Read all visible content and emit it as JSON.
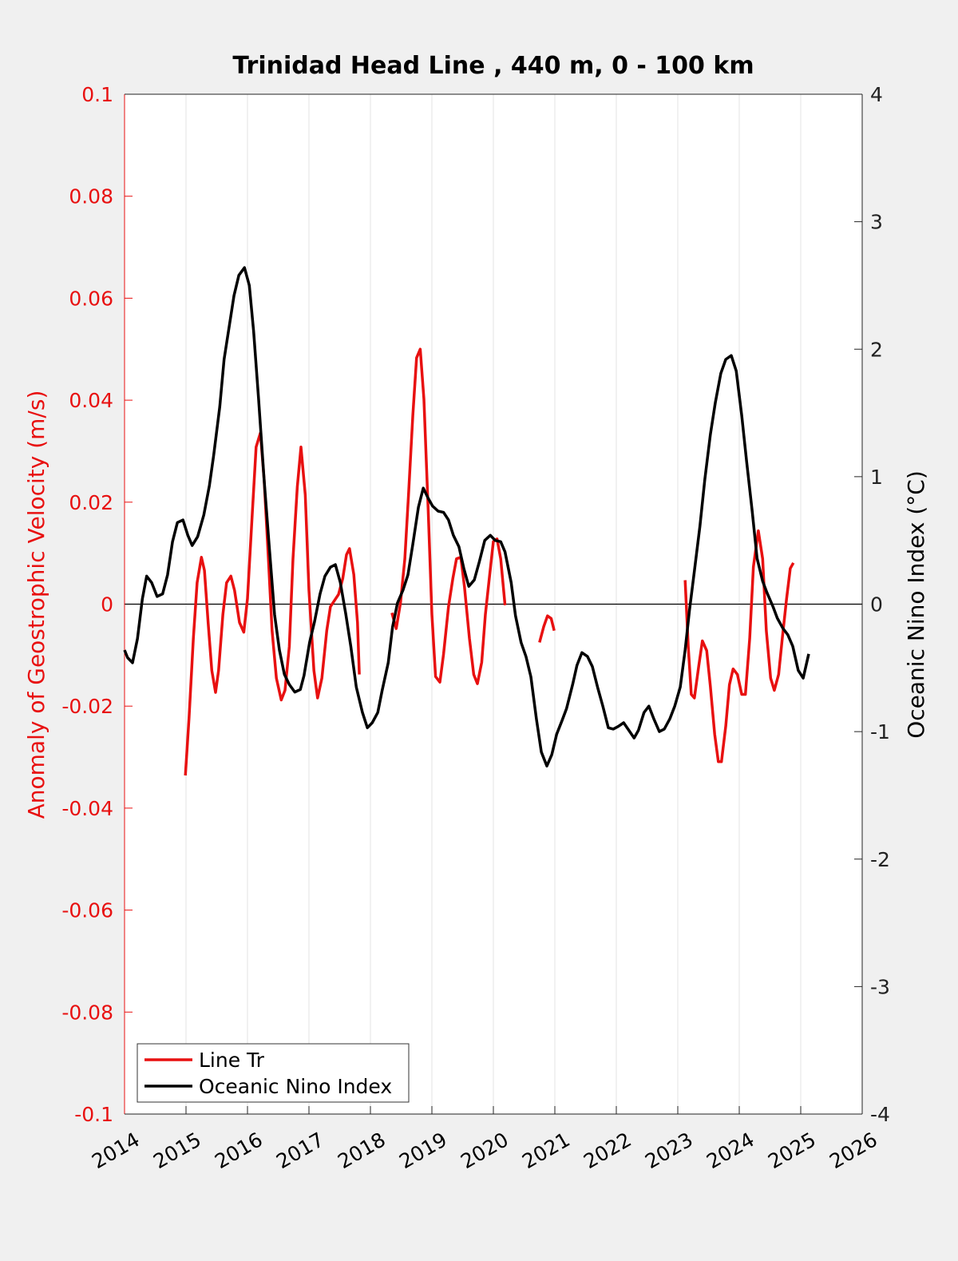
{
  "chart_data": {
    "type": "line",
    "title": "Trinidad Head Line , 440 m, 0 - 100 km",
    "ylabel": "Anomaly of Geostrophic Velocity (m/s)",
    "y2label": "Oceanic Nino Index (°C)",
    "xlim": [
      2014,
      2026
    ],
    "xticks": [
      2014,
      2015,
      2016,
      2017,
      2018,
      2019,
      2020,
      2021,
      2022,
      2023,
      2024,
      2025,
      2026
    ],
    "ylim": [
      -0.1,
      0.1
    ],
    "yticks": [
      -0.1,
      -0.08,
      -0.06,
      -0.04,
      -0.02,
      0,
      0.02,
      0.04,
      0.06,
      0.08,
      0.1
    ],
    "y2lim": [
      -4,
      4
    ],
    "y2ticks": [
      -4,
      -3,
      -2,
      -1,
      0,
      1,
      2,
      3,
      4
    ],
    "grid": "x",
    "legend": "lower left",
    "series": [
      {
        "name": "Line Tr",
        "color": "#e81010",
        "axis": "y",
        "x": [
          2014.99,
          2015.05,
          2015.12,
          2015.18,
          2015.25,
          2015.3,
          2015.36,
          2015.42,
          2015.48,
          2015.53,
          2015.6,
          2015.66,
          2015.73,
          2015.79,
          2015.87,
          2015.94,
          2016.0,
          2016.08,
          2016.14,
          2016.21,
          2016.27,
          2016.34,
          2016.4,
          2016.47,
          2016.55,
          2016.61,
          2016.68,
          2016.74,
          2016.81,
          2016.87,
          2016.94,
          2017.0,
          2017.08,
          2017.14,
          2017.21,
          2017.29,
          2017.35,
          2017.42,
          2017.48,
          2017.55,
          2017.61,
          2017.66,
          2017.73,
          2017.79,
          2017.82,
          2018.1,
          2018.35,
          2018.42,
          2018.49,
          2018.56,
          2018.62,
          2018.69,
          2018.75,
          2018.81,
          2018.87,
          2018.94,
          2019.0,
          2019.06,
          2019.13,
          2019.19,
          2019.27,
          2019.34,
          2019.4,
          2019.47,
          2019.53,
          2019.61,
          2019.68,
          2019.74,
          2019.81,
          2019.87,
          2019.94,
          2020.0,
          2020.06,
          2020.12,
          2020.19,
          2020.5,
          2020.75,
          2020.82,
          2020.88,
          2020.94,
          2020.99,
          2022.0,
          2023.12,
          2023.17,
          2023.22,
          2023.27,
          2023.34,
          2023.4,
          2023.47,
          2023.53,
          2023.6,
          2023.66,
          2023.71,
          2023.78,
          2023.84,
          2023.9,
          2023.97,
          2024.04,
          2024.1,
          2024.17,
          2024.23,
          2024.31,
          2024.38,
          2024.44,
          2024.51,
          2024.57,
          2024.64,
          2024.7,
          2024.77,
          2024.83,
          2024.88
        ],
        "values": [
          -0.0336,
          -0.0223,
          -0.0067,
          0.0042,
          0.0092,
          0.0066,
          -0.0036,
          -0.013,
          -0.0173,
          -0.013,
          -0.002,
          0.0042,
          0.0055,
          0.0027,
          -0.0036,
          -0.0055,
          0.0011,
          0.0183,
          0.0308,
          0.0336,
          0.0245,
          0.0089,
          -0.0052,
          -0.0145,
          -0.0188,
          -0.0169,
          -0.0083,
          0.0089,
          0.023,
          0.0308,
          0.0214,
          0.0027,
          -0.013,
          -0.0184,
          -0.0145,
          -0.0052,
          -0.0005,
          0.0008,
          0.0019,
          0.005,
          0.0097,
          0.0109,
          0.0058,
          -0.0036,
          -0.0138,
          null,
          -0.0017,
          -0.0048,
          0.0003,
          0.0089,
          0.0214,
          0.037,
          0.0483,
          0.05,
          0.0402,
          0.0183,
          -0.002,
          -0.0142,
          -0.0153,
          -0.0098,
          -0.0005,
          0.005,
          0.0089,
          0.0092,
          0.0034,
          -0.0067,
          -0.0138,
          -0.0156,
          -0.0114,
          -0.002,
          0.0058,
          0.0123,
          0.0128,
          0.0089,
          -0.0002,
          null,
          -0.0075,
          -0.0044,
          -0.0023,
          -0.0028,
          -0.0052,
          null,
          0.0047,
          -0.0083,
          -0.0177,
          -0.0184,
          -0.0122,
          -0.0072,
          -0.0091,
          -0.0161,
          -0.0255,
          -0.0309,
          -0.0309,
          -0.0239,
          -0.0158,
          -0.0127,
          -0.0138,
          -0.0177,
          -0.0177,
          -0.0067,
          0.0073,
          0.0144,
          0.0089,
          -0.0052,
          -0.0145,
          -0.0169,
          -0.0138,
          -0.0067,
          0.0011,
          0.007,
          0.0081
        ]
      },
      {
        "name": "Oceanic Nino Index",
        "color": "#000000",
        "axis": "y2",
        "x": [
          2014.0,
          2014.05,
          2014.13,
          2014.21,
          2014.29,
          2014.36,
          2014.44,
          2014.53,
          2014.62,
          2014.7,
          2014.78,
          2014.86,
          2014.95,
          2015.03,
          2015.1,
          2015.19,
          2015.29,
          2015.38,
          2015.45,
          2015.55,
          2015.62,
          2015.7,
          2015.78,
          2015.86,
          2015.95,
          2016.03,
          2016.1,
          2016.18,
          2016.27,
          2016.35,
          2016.44,
          2016.52,
          2016.6,
          2016.68,
          2016.77,
          2016.86,
          2016.92,
          2017.01,
          2017.09,
          2017.18,
          2017.26,
          2017.35,
          2017.43,
          2017.51,
          2017.6,
          2017.68,
          2017.77,
          2017.87,
          2017.95,
          2018.03,
          2018.12,
          2018.19,
          2018.29,
          2018.36,
          2018.44,
          2018.53,
          2018.61,
          2018.69,
          2018.78,
          2018.86,
          2018.94,
          2019.01,
          2019.1,
          2019.19,
          2019.27,
          2019.35,
          2019.44,
          2019.52,
          2019.6,
          2019.69,
          2019.77,
          2019.86,
          2019.95,
          2020.03,
          2020.12,
          2020.19,
          2020.29,
          2020.36,
          2020.45,
          2020.53,
          2020.61,
          2020.7,
          2020.78,
          2020.87,
          2020.95,
          2021.03,
          2021.12,
          2021.19,
          2021.29,
          2021.36,
          2021.44,
          2021.53,
          2021.61,
          2021.7,
          2021.78,
          2021.87,
          2021.95,
          2022.03,
          2022.12,
          2022.19,
          2022.29,
          2022.36,
          2022.45,
          2022.53,
          2022.61,
          2022.7,
          2022.78,
          2022.87,
          2022.95,
          2023.04,
          2023.12,
          2023.19,
          2023.27,
          2023.36,
          2023.44,
          2023.53,
          2023.61,
          2023.7,
          2023.78,
          2023.87,
          2023.95,
          2024.04,
          2024.12,
          2024.21,
          2024.29,
          2024.38,
          2024.45,
          2024.55,
          2024.62,
          2024.71,
          2024.79,
          2024.87,
          2024.96,
          2025.04,
          2025.13
        ],
        "values": [
          -0.36,
          -0.42,
          -0.46,
          -0.27,
          0.04,
          0.22,
          0.17,
          0.06,
          0.08,
          0.23,
          0.49,
          0.64,
          0.66,
          0.54,
          0.46,
          0.53,
          0.7,
          0.93,
          1.17,
          1.55,
          1.92,
          2.17,
          2.42,
          2.58,
          2.64,
          2.5,
          2.14,
          1.61,
          0.98,
          0.48,
          -0.08,
          -0.36,
          -0.55,
          -0.63,
          -0.69,
          -0.67,
          -0.56,
          -0.3,
          -0.14,
          0.08,
          0.22,
          0.29,
          0.31,
          0.17,
          -0.08,
          -0.33,
          -0.65,
          -0.85,
          -0.97,
          -0.93,
          -0.85,
          -0.68,
          -0.46,
          -0.18,
          0.01,
          0.11,
          0.23,
          0.47,
          0.76,
          0.91,
          0.83,
          0.77,
          0.73,
          0.72,
          0.66,
          0.54,
          0.45,
          0.28,
          0.14,
          0.19,
          0.33,
          0.5,
          0.54,
          0.5,
          0.49,
          0.41,
          0.17,
          -0.09,
          -0.3,
          -0.41,
          -0.57,
          -0.9,
          -1.16,
          -1.27,
          -1.18,
          -1.02,
          -0.91,
          -0.82,
          -0.63,
          -0.48,
          -0.38,
          -0.41,
          -0.49,
          -0.66,
          -0.8,
          -0.97,
          -0.98,
          -0.96,
          -0.93,
          -0.98,
          -1.05,
          -0.99,
          -0.85,
          -0.8,
          -0.9,
          -1.0,
          -0.98,
          -0.9,
          -0.8,
          -0.65,
          -0.36,
          -0.05,
          0.26,
          0.61,
          0.98,
          1.33,
          1.58,
          1.81,
          1.92,
          1.95,
          1.83,
          1.48,
          1.12,
          0.73,
          0.36,
          0.18,
          0.09,
          -0.02,
          -0.11,
          -0.19,
          -0.24,
          -0.33,
          -0.52,
          -0.58,
          -0.39
        ]
      }
    ]
  }
}
